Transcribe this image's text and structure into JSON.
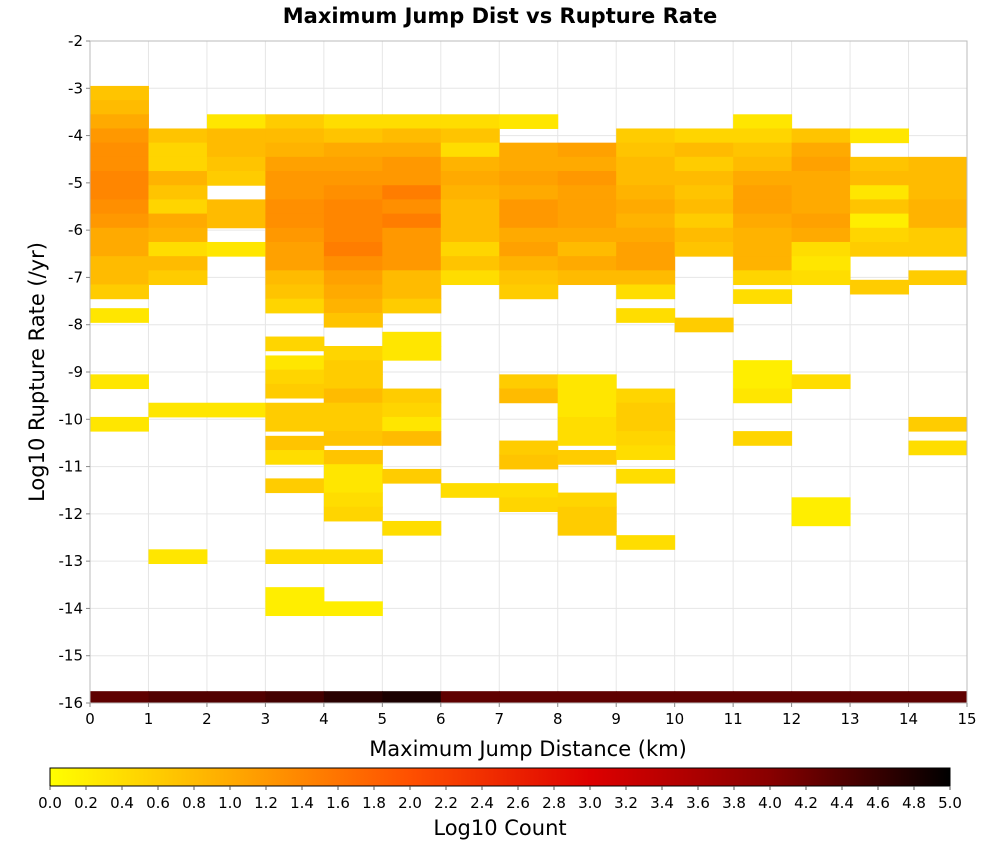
{
  "chart_data": {
    "type": "heatmap",
    "title": "Maximum Jump Dist vs Rupture Rate",
    "xlabel": "Maximum Jump Distance (km)",
    "ylabel": "Log10 Rupture Rate (/yr)",
    "xlim": [
      0,
      15
    ],
    "ylim": [
      -16,
      -2
    ],
    "xticks": [
      0,
      1,
      2,
      3,
      4,
      5,
      6,
      7,
      8,
      9,
      10,
      11,
      12,
      13,
      14,
      15
    ],
    "yticks": [
      -2,
      -3,
      -4,
      -5,
      -6,
      -7,
      -8,
      -9,
      -10,
      -11,
      -12,
      -13,
      -14,
      -15,
      -16
    ],
    "colorbar": {
      "label": "Log10 Count",
      "range": [
        0,
        5
      ],
      "ticks": [
        "0.0",
        "0.2",
        "0.4",
        "0.6",
        "0.8",
        "1.0",
        "1.2",
        "1.4",
        "1.6",
        "1.8",
        "2.0",
        "2.2",
        "2.4",
        "2.6",
        "2.8",
        "3.0",
        "3.2",
        "3.4",
        "3.6",
        "3.8",
        "4.0",
        "4.2",
        "4.4",
        "4.6",
        "4.8",
        "5.0"
      ],
      "colors": [
        "#ffff00",
        "#ffaa00",
        "#ff5000",
        "#dd0000",
        "#880000",
        "#000000"
      ]
    },
    "bin_width_x": 1,
    "bin_height_y": 0.3,
    "grid": true,
    "cells": [
      [
        0,
        -3.1,
        0.7
      ],
      [
        0,
        -3.4,
        0.8
      ],
      [
        0,
        -3.7,
        1.0
      ],
      [
        0,
        -4.0,
        1.2
      ],
      [
        0,
        -4.3,
        1.3
      ],
      [
        0,
        -4.6,
        1.3
      ],
      [
        0,
        -4.9,
        1.4
      ],
      [
        0,
        -5.2,
        1.4
      ],
      [
        0,
        -5.5,
        1.3
      ],
      [
        0,
        -5.8,
        1.2
      ],
      [
        0,
        -6.1,
        1.0
      ],
      [
        0,
        -6.4,
        1.0
      ],
      [
        0,
        -6.7,
        0.8
      ],
      [
        0,
        -7.0,
        0.8
      ],
      [
        0,
        -7.3,
        0.6
      ],
      [
        0,
        -7.8,
        0.3
      ],
      [
        0,
        -9.2,
        0.3
      ],
      [
        0,
        -10.1,
        0.3
      ],
      [
        1,
        -4.0,
        0.7
      ],
      [
        1,
        -4.3,
        0.5
      ],
      [
        1,
        -4.6,
        0.5
      ],
      [
        1,
        -4.9,
        0.9
      ],
      [
        1,
        -5.2,
        0.7
      ],
      [
        1,
        -5.5,
        0.5
      ],
      [
        1,
        -5.8,
        1.0
      ],
      [
        1,
        -6.1,
        0.9
      ],
      [
        1,
        -6.4,
        0.4
      ],
      [
        1,
        -6.7,
        0.8
      ],
      [
        1,
        -7.0,
        0.6
      ],
      [
        1,
        -9.8,
        0.3
      ],
      [
        1,
        -12.9,
        0.3
      ],
      [
        2,
        -3.7,
        0.3
      ],
      [
        2,
        -4.0,
        0.8
      ],
      [
        2,
        -4.3,
        0.8
      ],
      [
        2,
        -4.6,
        0.7
      ],
      [
        2,
        -4.9,
        0.6
      ],
      [
        2,
        -5.5,
        0.8
      ],
      [
        2,
        -5.8,
        0.8
      ],
      [
        2,
        -6.4,
        0.3
      ],
      [
        2,
        -9.8,
        0.3
      ],
      [
        3,
        -3.7,
        0.6
      ],
      [
        3,
        -4.0,
        0.8
      ],
      [
        3,
        -4.3,
        0.9
      ],
      [
        3,
        -4.6,
        1.1
      ],
      [
        3,
        -4.9,
        1.2
      ],
      [
        3,
        -5.2,
        1.2
      ],
      [
        3,
        -5.5,
        1.3
      ],
      [
        3,
        -5.8,
        1.3
      ],
      [
        3,
        -6.1,
        1.2
      ],
      [
        3,
        -6.4,
        1.1
      ],
      [
        3,
        -6.7,
        1.1
      ],
      [
        3,
        -7.0,
        0.8
      ],
      [
        3,
        -7.3,
        0.7
      ],
      [
        3,
        -7.6,
        0.5
      ],
      [
        3,
        -8.4,
        0.5
      ],
      [
        3,
        -8.8,
        0.3
      ],
      [
        3,
        -9.1,
        0.5
      ],
      [
        3,
        -9.4,
        0.6
      ],
      [
        3,
        -9.8,
        0.6
      ],
      [
        3,
        -10.1,
        0.6
      ],
      [
        3,
        -10.5,
        0.7
      ],
      [
        3,
        -10.8,
        0.4
      ],
      [
        3,
        -11.4,
        0.6
      ],
      [
        3,
        -12.9,
        0.4
      ],
      [
        3,
        -13.7,
        0.2
      ],
      [
        3,
        -14.0,
        0.2
      ],
      [
        4,
        -3.7,
        0.4
      ],
      [
        4,
        -4.0,
        0.7
      ],
      [
        4,
        -4.3,
        1.0
      ],
      [
        4,
        -4.6,
        1.1
      ],
      [
        4,
        -4.9,
        1.2
      ],
      [
        4,
        -5.2,
        1.3
      ],
      [
        4,
        -5.5,
        1.4
      ],
      [
        4,
        -5.8,
        1.4
      ],
      [
        4,
        -6.1,
        1.4
      ],
      [
        4,
        -6.4,
        1.5
      ],
      [
        4,
        -6.7,
        1.3
      ],
      [
        4,
        -7.0,
        1.1
      ],
      [
        4,
        -7.3,
        1.0
      ],
      [
        4,
        -7.6,
        0.9
      ],
      [
        4,
        -7.9,
        0.7
      ],
      [
        4,
        -8.6,
        0.5
      ],
      [
        4,
        -8.9,
        0.6
      ],
      [
        4,
        -9.2,
        0.6
      ],
      [
        4,
        -9.5,
        0.8
      ],
      [
        4,
        -9.8,
        0.6
      ],
      [
        4,
        -10.1,
        0.6
      ],
      [
        4,
        -10.4,
        0.7
      ],
      [
        4,
        -10.8,
        0.7
      ],
      [
        4,
        -11.1,
        0.3
      ],
      [
        4,
        -11.4,
        0.3
      ],
      [
        4,
        -11.7,
        0.4
      ],
      [
        4,
        -12.0,
        0.5
      ],
      [
        4,
        -12.9,
        0.4
      ],
      [
        4,
        -14.0,
        0.2
      ],
      [
        5,
        -3.7,
        0.4
      ],
      [
        5,
        -4.0,
        0.8
      ],
      [
        5,
        -4.3,
        1.0
      ],
      [
        5,
        -4.6,
        1.2
      ],
      [
        5,
        -4.9,
        1.2
      ],
      [
        5,
        -5.2,
        1.5
      ],
      [
        5,
        -5.5,
        1.3
      ],
      [
        5,
        -5.8,
        1.5
      ],
      [
        5,
        -6.1,
        1.2
      ],
      [
        5,
        -6.4,
        1.2
      ],
      [
        5,
        -6.7,
        1.2
      ],
      [
        5,
        -7.0,
        0.8
      ],
      [
        5,
        -7.3,
        0.8
      ],
      [
        5,
        -7.6,
        0.6
      ],
      [
        5,
        -8.3,
        0.3
      ],
      [
        5,
        -8.6,
        0.3
      ],
      [
        5,
        -9.5,
        0.6
      ],
      [
        5,
        -9.8,
        0.5
      ],
      [
        5,
        -10.1,
        0.3
      ],
      [
        5,
        -10.4,
        0.8
      ],
      [
        5,
        -11.2,
        0.6
      ],
      [
        5,
        -12.3,
        0.4
      ],
      [
        6,
        -3.7,
        0.4
      ],
      [
        6,
        -4.0,
        0.7
      ],
      [
        6,
        -4.3,
        0.4
      ],
      [
        6,
        -4.6,
        0.9
      ],
      [
        6,
        -4.9,
        1.0
      ],
      [
        6,
        -5.2,
        0.9
      ],
      [
        6,
        -5.5,
        0.8
      ],
      [
        6,
        -5.8,
        0.8
      ],
      [
        6,
        -6.1,
        0.8
      ],
      [
        6,
        -6.4,
        0.5
      ],
      [
        6,
        -6.7,
        0.7
      ],
      [
        6,
        -7.0,
        0.4
      ],
      [
        6,
        -11.5,
        0.4
      ],
      [
        7,
        -3.7,
        0.3
      ],
      [
        7,
        -4.3,
        1.0
      ],
      [
        7,
        -4.6,
        1.0
      ],
      [
        7,
        -4.9,
        1.1
      ],
      [
        7,
        -5.2,
        1.0
      ],
      [
        7,
        -5.5,
        1.2
      ],
      [
        7,
        -5.8,
        1.2
      ],
      [
        7,
        -6.1,
        1.0
      ],
      [
        7,
        -6.4,
        1.1
      ],
      [
        7,
        -6.7,
        0.9
      ],
      [
        7,
        -7.0,
        0.7
      ],
      [
        7,
        -7.3,
        0.6
      ],
      [
        7,
        -9.2,
        0.6
      ],
      [
        7,
        -9.5,
        0.8
      ],
      [
        7,
        -10.6,
        0.6
      ],
      [
        7,
        -10.9,
        0.7
      ],
      [
        7,
        -11.5,
        0.4
      ],
      [
        7,
        -11.8,
        0.5
      ],
      [
        8,
        -4.3,
        1.1
      ],
      [
        8,
        -4.6,
        1.0
      ],
      [
        8,
        -4.9,
        1.2
      ],
      [
        8,
        -5.2,
        1.1
      ],
      [
        8,
        -5.5,
        1.1
      ],
      [
        8,
        -5.8,
        1.1
      ],
      [
        8,
        -6.1,
        1.0
      ],
      [
        8,
        -6.4,
        0.8
      ],
      [
        8,
        -6.7,
        1.0
      ],
      [
        8,
        -7.0,
        0.8
      ],
      [
        8,
        -9.2,
        0.3
      ],
      [
        8,
        -9.5,
        0.3
      ],
      [
        8,
        -9.8,
        0.3
      ],
      [
        8,
        -10.1,
        0.4
      ],
      [
        8,
        -10.4,
        0.4
      ],
      [
        8,
        -10.8,
        0.6
      ],
      [
        8,
        -11.7,
        0.5
      ],
      [
        8,
        -12.0,
        0.6
      ],
      [
        8,
        -12.3,
        0.6
      ],
      [
        9,
        -4.0,
        0.6
      ],
      [
        9,
        -4.3,
        0.7
      ],
      [
        9,
        -4.6,
        0.8
      ],
      [
        9,
        -4.9,
        0.8
      ],
      [
        9,
        -5.2,
        0.9
      ],
      [
        9,
        -5.5,
        1.0
      ],
      [
        9,
        -5.8,
        0.9
      ],
      [
        9,
        -6.1,
        1.0
      ],
      [
        9,
        -6.4,
        1.1
      ],
      [
        9,
        -6.7,
        1.1
      ],
      [
        9,
        -7.0,
        0.8
      ],
      [
        9,
        -7.3,
        0.4
      ],
      [
        9,
        -7.8,
        0.4
      ],
      [
        9,
        -9.5,
        0.5
      ],
      [
        9,
        -9.8,
        0.6
      ],
      [
        9,
        -10.1,
        0.6
      ],
      [
        9,
        -10.4,
        0.5
      ],
      [
        9,
        -10.7,
        0.4
      ],
      [
        9,
        -11.2,
        0.4
      ],
      [
        9,
        -12.6,
        0.4
      ],
      [
        10,
        -4.0,
        0.5
      ],
      [
        10,
        -4.3,
        0.8
      ],
      [
        10,
        -4.6,
        0.6
      ],
      [
        10,
        -4.9,
        0.8
      ],
      [
        10,
        -5.2,
        0.7
      ],
      [
        10,
        -5.5,
        0.8
      ],
      [
        10,
        -5.8,
        0.6
      ],
      [
        10,
        -6.1,
        0.8
      ],
      [
        10,
        -6.4,
        0.7
      ],
      [
        10,
        -8.0,
        0.6
      ],
      [
        11,
        -3.7,
        0.3
      ],
      [
        11,
        -4.0,
        0.5
      ],
      [
        11,
        -4.3,
        0.7
      ],
      [
        11,
        -4.6,
        0.8
      ],
      [
        11,
        -4.9,
        1.0
      ],
      [
        11,
        -5.2,
        1.1
      ],
      [
        11,
        -5.5,
        1.1
      ],
      [
        11,
        -5.8,
        1.0
      ],
      [
        11,
        -6.1,
        0.9
      ],
      [
        11,
        -6.4,
        0.9
      ],
      [
        11,
        -6.7,
        0.9
      ],
      [
        11,
        -7.0,
        0.5
      ],
      [
        11,
        -7.4,
        0.4
      ],
      [
        11,
        -8.9,
        0.2
      ],
      [
        11,
        -9.2,
        0.2
      ],
      [
        11,
        -9.5,
        0.3
      ],
      [
        11,
        -10.4,
        0.5
      ],
      [
        12,
        -4.0,
        0.7
      ],
      [
        12,
        -4.3,
        1.0
      ],
      [
        12,
        -4.6,
        1.1
      ],
      [
        12,
        -4.9,
        1.0
      ],
      [
        12,
        -5.2,
        1.0
      ],
      [
        12,
        -5.5,
        1.0
      ],
      [
        12,
        -5.8,
        1.1
      ],
      [
        12,
        -6.1,
        1.0
      ],
      [
        12,
        -6.4,
        0.4
      ],
      [
        12,
        -6.7,
        0.3
      ],
      [
        12,
        -7.0,
        0.4
      ],
      [
        12,
        -9.2,
        0.4
      ],
      [
        12,
        -11.8,
        0.2
      ],
      [
        12,
        -12.1,
        0.2
      ],
      [
        13,
        -4.0,
        0.3
      ],
      [
        13,
        -4.6,
        0.7
      ],
      [
        13,
        -4.9,
        0.8
      ],
      [
        13,
        -5.2,
        0.3
      ],
      [
        13,
        -5.5,
        0.7
      ],
      [
        13,
        -5.8,
        0.2
      ],
      [
        13,
        -6.1,
        0.5
      ],
      [
        13,
        -6.4,
        0.6
      ],
      [
        13,
        -7.2,
        0.6
      ],
      [
        14,
        -4.6,
        0.8
      ],
      [
        14,
        -4.9,
        0.8
      ],
      [
        14,
        -5.2,
        0.8
      ],
      [
        14,
        -5.5,
        0.9
      ],
      [
        14,
        -5.8,
        0.9
      ],
      [
        14,
        -6.1,
        0.6
      ],
      [
        14,
        -6.4,
        0.6
      ],
      [
        14,
        -7.0,
        0.6
      ],
      [
        14,
        -10.1,
        0.6
      ],
      [
        14,
        -10.6,
        0.4
      ]
    ],
    "bottom_row": {
      "y": -15.9,
      "values": [
        [
          0,
          4.3
        ],
        [
          1,
          4.4
        ],
        [
          2,
          4.4
        ],
        [
          3,
          4.5
        ],
        [
          4,
          4.7
        ],
        [
          5,
          4.8
        ],
        [
          6,
          4.3
        ],
        [
          7,
          4.3
        ],
        [
          8,
          4.3
        ],
        [
          9,
          4.3
        ],
        [
          10,
          4.3
        ],
        [
          11,
          4.3
        ],
        [
          12,
          4.3
        ],
        [
          13,
          4.3
        ],
        [
          14,
          4.3
        ]
      ]
    }
  }
}
